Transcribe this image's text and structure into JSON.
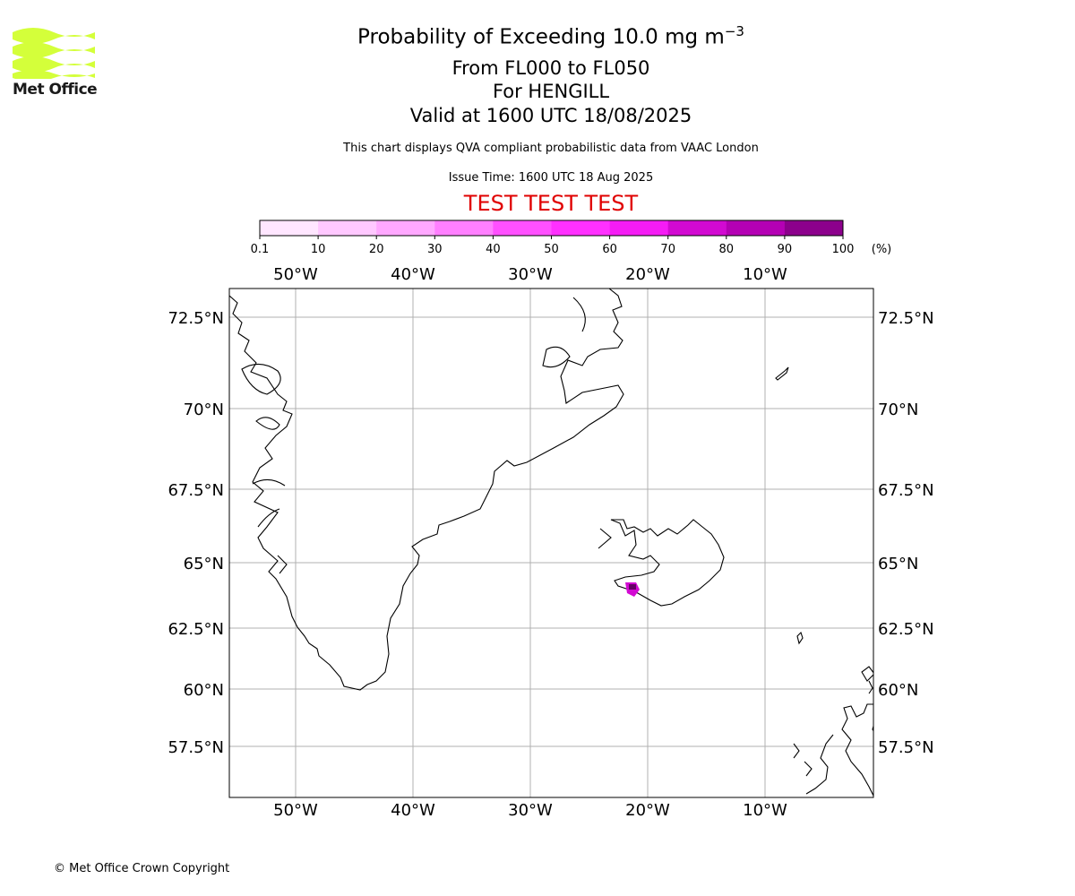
{
  "logo": {
    "text": "Met Office",
    "brand_color": "#d4ff3a"
  },
  "header": {
    "title": "Probability of Exceeding 10.0 mg m",
    "title_superscript": "−3",
    "level_range": "From FL000 to FL050",
    "location": "For HENGILL",
    "valid_time": "Valid at 1600 UTC 18/08/2025",
    "description": "This chart displays QVA compliant probabilistic data from VAAC London",
    "issue_time": "Issue Time: 1600 UTC 18 Aug 2025",
    "test_banner": "TEST TEST TEST",
    "test_color": "#e00000"
  },
  "colorbar": {
    "unit": "(%)",
    "ticks": [
      "0.1",
      "10",
      "20",
      "30",
      "40",
      "50",
      "60",
      "70",
      "80",
      "90",
      "100"
    ],
    "colors": [
      "#ffe6ff",
      "#ffc8ff",
      "#ffa8ff",
      "#ff7fff",
      "#ff50ff",
      "#ff30ff",
      "#f51cf5",
      "#d20ad2",
      "#b400b4",
      "#8c008c",
      "#640064"
    ]
  },
  "map": {
    "lon_labels": [
      "50°W",
      "40°W",
      "30°W",
      "20°W",
      "10°W"
    ],
    "lat_labels": [
      "72.5°N",
      "70°N",
      "67.5°N",
      "65°N",
      "62.5°N",
      "60°N",
      "57.5°N"
    ],
    "hotspot": {
      "name": "HENGILL",
      "lat": 64.1,
      "lon": -21.3,
      "probability_band": "70-100"
    }
  },
  "footer": {
    "copyright": "© Met Office Crown Copyright"
  }
}
